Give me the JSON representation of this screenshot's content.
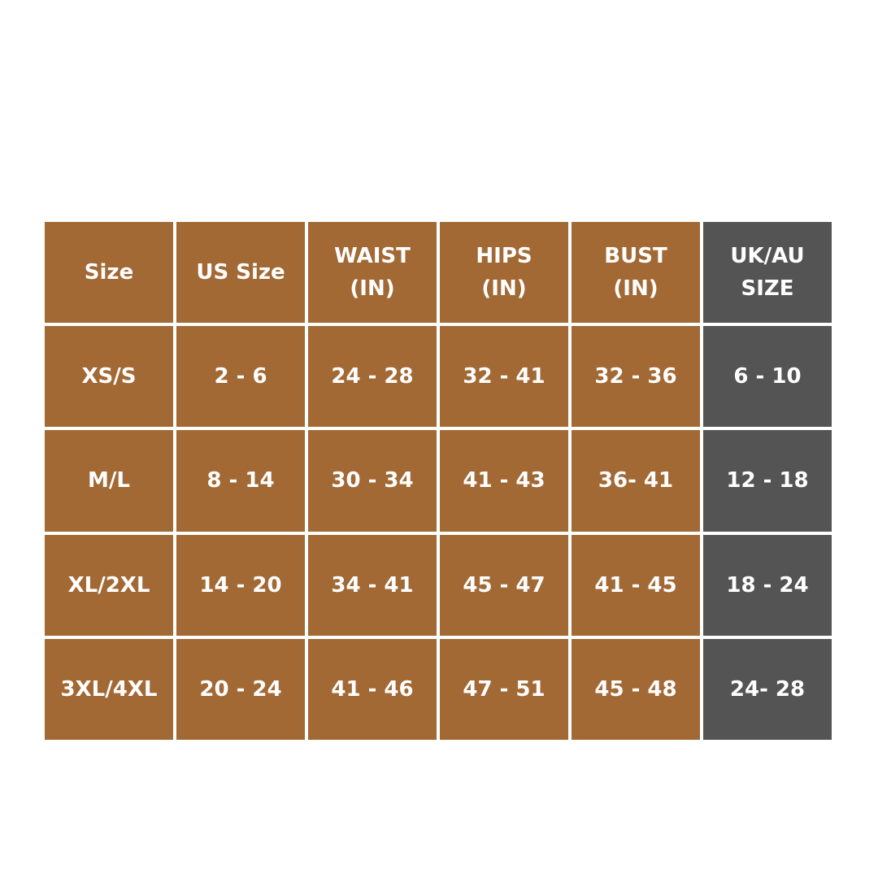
{
  "colors": {
    "brand": "#A26935",
    "uk_au_column": "#545454",
    "text": "#FFFFFF"
  },
  "table": {
    "headers": [
      "Size",
      "US Size",
      "WAIST\n(IN)",
      "HIPS\n(IN)",
      "BUST\n(IN)",
      "UK/AU\nSIZE"
    ],
    "rows": [
      [
        "XS/S",
        "2 - 6",
        "24 - 28",
        "32 - 41",
        "32 - 36",
        "6 - 10"
      ],
      [
        "M/L",
        "8 - 14",
        "30 - 34",
        "41 - 43",
        "36- 41",
        "12 - 18"
      ],
      [
        "XL/2XL",
        "14 - 20",
        "34 - 41",
        "45 - 47",
        "41 - 45",
        "18 - 24"
      ],
      [
        "3XL/4XL",
        "20 - 24",
        "41 - 46",
        "47 - 51",
        "45 - 48",
        "24- 28"
      ]
    ]
  }
}
